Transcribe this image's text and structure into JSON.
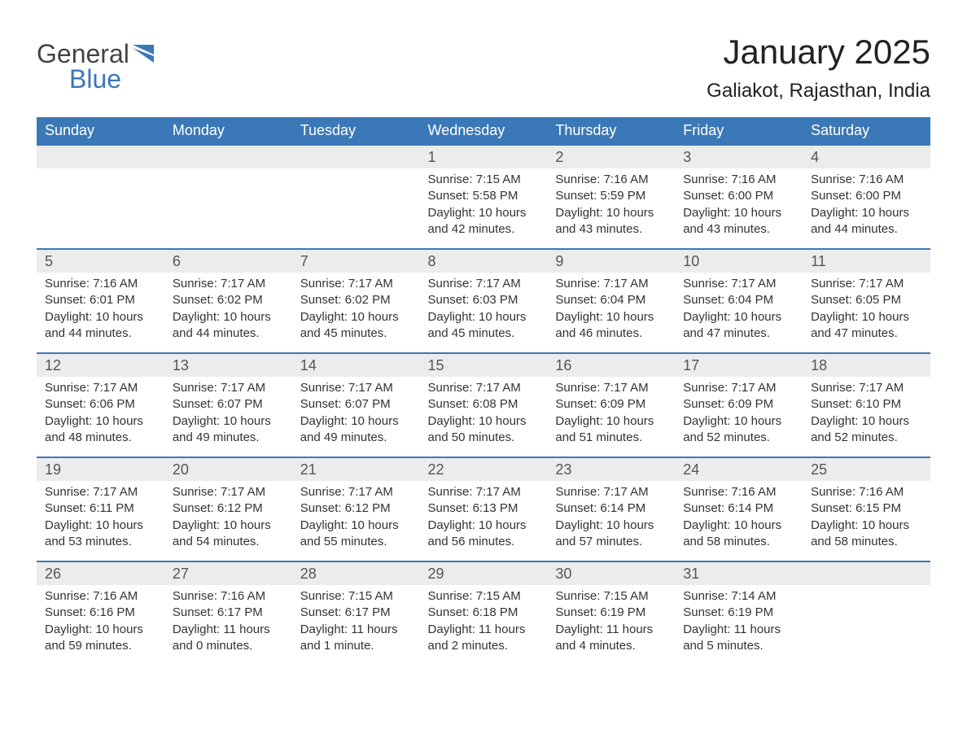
{
  "logo": {
    "text1": "General",
    "text2": "Blue",
    "flag_color": "#3b78b8"
  },
  "title": "January 2025",
  "location": "Galiakot, Rajasthan, India",
  "header_bg": "#3b78b8",
  "header_fg": "#ffffff",
  "daynum_bg": "#ececec",
  "daynum_border": "#3b78b8",
  "text_color": "#333333",
  "columns": [
    "Sunday",
    "Monday",
    "Tuesday",
    "Wednesday",
    "Thursday",
    "Friday",
    "Saturday"
  ],
  "weeks": [
    [
      null,
      null,
      null,
      {
        "n": "1",
        "sunrise": "7:15 AM",
        "sunset": "5:58 PM",
        "daylight": "10 hours and 42 minutes."
      },
      {
        "n": "2",
        "sunrise": "7:16 AM",
        "sunset": "5:59 PM",
        "daylight": "10 hours and 43 minutes."
      },
      {
        "n": "3",
        "sunrise": "7:16 AM",
        "sunset": "6:00 PM",
        "daylight": "10 hours and 43 minutes."
      },
      {
        "n": "4",
        "sunrise": "7:16 AM",
        "sunset": "6:00 PM",
        "daylight": "10 hours and 44 minutes."
      }
    ],
    [
      {
        "n": "5",
        "sunrise": "7:16 AM",
        "sunset": "6:01 PM",
        "daylight": "10 hours and 44 minutes."
      },
      {
        "n": "6",
        "sunrise": "7:17 AM",
        "sunset": "6:02 PM",
        "daylight": "10 hours and 44 minutes."
      },
      {
        "n": "7",
        "sunrise": "7:17 AM",
        "sunset": "6:02 PM",
        "daylight": "10 hours and 45 minutes."
      },
      {
        "n": "8",
        "sunrise": "7:17 AM",
        "sunset": "6:03 PM",
        "daylight": "10 hours and 45 minutes."
      },
      {
        "n": "9",
        "sunrise": "7:17 AM",
        "sunset": "6:04 PM",
        "daylight": "10 hours and 46 minutes."
      },
      {
        "n": "10",
        "sunrise": "7:17 AM",
        "sunset": "6:04 PM",
        "daylight": "10 hours and 47 minutes."
      },
      {
        "n": "11",
        "sunrise": "7:17 AM",
        "sunset": "6:05 PM",
        "daylight": "10 hours and 47 minutes."
      }
    ],
    [
      {
        "n": "12",
        "sunrise": "7:17 AM",
        "sunset": "6:06 PM",
        "daylight": "10 hours and 48 minutes."
      },
      {
        "n": "13",
        "sunrise": "7:17 AM",
        "sunset": "6:07 PM",
        "daylight": "10 hours and 49 minutes."
      },
      {
        "n": "14",
        "sunrise": "7:17 AM",
        "sunset": "6:07 PM",
        "daylight": "10 hours and 49 minutes."
      },
      {
        "n": "15",
        "sunrise": "7:17 AM",
        "sunset": "6:08 PM",
        "daylight": "10 hours and 50 minutes."
      },
      {
        "n": "16",
        "sunrise": "7:17 AM",
        "sunset": "6:09 PM",
        "daylight": "10 hours and 51 minutes."
      },
      {
        "n": "17",
        "sunrise": "7:17 AM",
        "sunset": "6:09 PM",
        "daylight": "10 hours and 52 minutes."
      },
      {
        "n": "18",
        "sunrise": "7:17 AM",
        "sunset": "6:10 PM",
        "daylight": "10 hours and 52 minutes."
      }
    ],
    [
      {
        "n": "19",
        "sunrise": "7:17 AM",
        "sunset": "6:11 PM",
        "daylight": "10 hours and 53 minutes."
      },
      {
        "n": "20",
        "sunrise": "7:17 AM",
        "sunset": "6:12 PM",
        "daylight": "10 hours and 54 minutes."
      },
      {
        "n": "21",
        "sunrise": "7:17 AM",
        "sunset": "6:12 PM",
        "daylight": "10 hours and 55 minutes."
      },
      {
        "n": "22",
        "sunrise": "7:17 AM",
        "sunset": "6:13 PM",
        "daylight": "10 hours and 56 minutes."
      },
      {
        "n": "23",
        "sunrise": "7:17 AM",
        "sunset": "6:14 PM",
        "daylight": "10 hours and 57 minutes."
      },
      {
        "n": "24",
        "sunrise": "7:16 AM",
        "sunset": "6:14 PM",
        "daylight": "10 hours and 58 minutes."
      },
      {
        "n": "25",
        "sunrise": "7:16 AM",
        "sunset": "6:15 PM",
        "daylight": "10 hours and 58 minutes."
      }
    ],
    [
      {
        "n": "26",
        "sunrise": "7:16 AM",
        "sunset": "6:16 PM",
        "daylight": "10 hours and 59 minutes."
      },
      {
        "n": "27",
        "sunrise": "7:16 AM",
        "sunset": "6:17 PM",
        "daylight": "11 hours and 0 minutes."
      },
      {
        "n": "28",
        "sunrise": "7:15 AM",
        "sunset": "6:17 PM",
        "daylight": "11 hours and 1 minute."
      },
      {
        "n": "29",
        "sunrise": "7:15 AM",
        "sunset": "6:18 PM",
        "daylight": "11 hours and 2 minutes."
      },
      {
        "n": "30",
        "sunrise": "7:15 AM",
        "sunset": "6:19 PM",
        "daylight": "11 hours and 4 minutes."
      },
      {
        "n": "31",
        "sunrise": "7:14 AM",
        "sunset": "6:19 PM",
        "daylight": "11 hours and 5 minutes."
      },
      null
    ]
  ],
  "labels": {
    "sunrise": "Sunrise: ",
    "sunset": "Sunset: ",
    "daylight": "Daylight: "
  }
}
